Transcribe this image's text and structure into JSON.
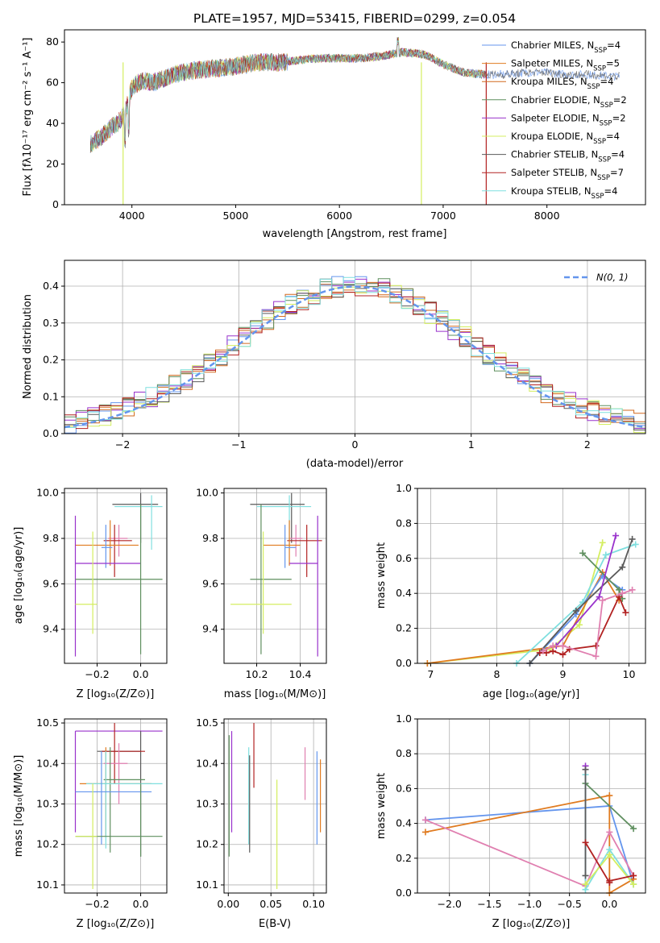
{
  "colors": {
    "blue": "#6495ed",
    "orange": "#e07b20",
    "darkorange": "#d2691e",
    "green": "#5f8f5f",
    "purple": "#9932cc",
    "yellow": "#d4ee60",
    "gray": "#5a5a5a",
    "red": "#b22222",
    "cyan": "#7fdfdf",
    "pink": "#e07fb0"
  },
  "chart_data": [
    {
      "id": "spectrum",
      "type": "line",
      "title": "PLATE=1957, MJD=53415, FIBERID=0299, z=0.054",
      "xlabel": "wavelength [Angstrom, rest frame]",
      "ylabel": "Flux [fλ10⁻¹⁷ erg cm⁻² s⁻¹ A⁻¹]",
      "xlim": [
        3350,
        8950
      ],
      "ylim": [
        0,
        86
      ],
      "xticks": [
        "4000",
        "5000",
        "6000",
        "7000",
        "8000"
      ],
      "yticks": [
        "0",
        "20",
        "40",
        "60",
        "80"
      ],
      "legend_loc": "upper-right",
      "legend": [
        "Chabrier MILES, N_SSP=4",
        "Salpeter MILES, N_SSP=5",
        "Kroupa MILES, N_SSP=4",
        "Chabrier ELODIE, N_SSP=2",
        "Salpeter ELODIE, N_SSP=2",
        "Kroupa ELODIE, N_SSP=4",
        "Chabrier STELIB, N_SSP=4",
        "Salpeter STELIB, N_SSP=7",
        "Kroupa STELIB, N_SSP=4"
      ],
      "continuum": {
        "x": [
          3600,
          3700,
          3800,
          3900,
          3950,
          4000,
          4100,
          4200,
          4400,
          4600,
          4800,
          5000,
          5200,
          5400,
          5600,
          5800,
          6000,
          6200,
          6400,
          6600,
          6800,
          6900,
          7000,
          7200,
          7400,
          7600,
          7800,
          8000,
          8200,
          8400,
          8700
        ],
        "y": [
          30,
          33,
          38,
          42,
          48,
          58,
          61,
          60,
          64,
          66,
          67,
          68,
          70,
          70,
          71,
          72,
          72,
          72,
          73,
          75,
          74,
          72,
          69,
          65,
          64,
          64,
          65,
          65,
          64,
          64,
          63
        ]
      }
    },
    {
      "id": "residuals",
      "type": "bar",
      "xlabel": "(data-model)/error",
      "ylabel": "Normed distribution",
      "xlim": [
        -2.5,
        2.5
      ],
      "ylim": [
        0,
        0.47
      ],
      "xticks": [
        "−2",
        "−1",
        "0",
        "1",
        "2"
      ],
      "yticks": [
        "0.0",
        "0.1",
        "0.2",
        "0.3",
        "0.4"
      ],
      "bin_width": 0.1,
      "normal_curve_label": "N(0, 1)",
      "legend_loc": "upper-right",
      "series_colors": [
        "blue",
        "darkorange",
        "darkorange",
        "green",
        "purple",
        "yellow",
        "gray",
        "red",
        "cyan"
      ]
    },
    {
      "id": "age_vs_Z",
      "type": "scatter",
      "xlabel": "Z [log₁₀(Z/Z⊙)]",
      "ylabel": "age  [log₁₀(age/yr)]",
      "xlim": [
        -0.35,
        0.12
      ],
      "ylim": [
        9.25,
        10.02
      ],
      "xticks": [
        "−0.2",
        "0.0"
      ],
      "yticks": [
        "9.4",
        "9.6",
        "9.8",
        "10.0"
      ],
      "points": [
        {
          "c": "gray",
          "x": [
            -0.13,
            0.08
          ],
          "y": [
            9.95,
            9.95
          ],
          "vx": 0.0,
          "vy": [
            9.78,
            10.0
          ]
        },
        {
          "c": "cyan",
          "x": [
            -0.12,
            0.1
          ],
          "y": [
            9.94,
            9.94
          ],
          "vx": 0.05,
          "vy": [
            9.75,
            9.99
          ]
        },
        {
          "c": "pink",
          "x": [
            -0.15,
            -0.06
          ],
          "y": [
            9.8,
            9.8
          ],
          "vx": -0.1,
          "vy": [
            9.72,
            9.86
          ]
        },
        {
          "c": "red",
          "x": [
            -0.17,
            -0.04
          ],
          "y": [
            9.79,
            9.79
          ],
          "vx": -0.12,
          "vy": [
            9.63,
            9.86
          ]
        },
        {
          "c": "orange",
          "x": [
            -0.3,
            -0.01
          ],
          "y": [
            9.77,
            9.77
          ],
          "vx": -0.14,
          "vy": [
            9.68,
            9.88
          ]
        },
        {
          "c": "blue",
          "x": [
            -0.18,
            -0.13
          ],
          "y": [
            9.76,
            9.76
          ],
          "vx": -0.16,
          "vy": [
            9.67,
            9.86
          ]
        },
        {
          "c": "purple",
          "x": [
            -0.3,
            0.0
          ],
          "y": [
            9.69,
            9.69
          ],
          "vx": -0.3,
          "vy": [
            9.28,
            9.9
          ]
        },
        {
          "c": "green",
          "x": [
            -0.3,
            0.1
          ],
          "y": [
            9.62,
            9.62
          ],
          "vx": 0.0,
          "vy": [
            9.29,
            9.95
          ]
        },
        {
          "c": "yellow",
          "x": [
            -0.3,
            -0.2
          ],
          "y": [
            9.51,
            9.51
          ],
          "vx": -0.22,
          "vy": [
            9.38,
            9.83
          ]
        }
      ]
    },
    {
      "id": "age_vs_mass",
      "type": "scatter",
      "xlabel": "mass [log₁₀(M/M⊙)]",
      "ylabel": "",
      "xlim": [
        10.05,
        10.52
      ],
      "ylim": [
        9.25,
        10.02
      ],
      "xticks": [
        "10.2",
        "10.4"
      ],
      "yticks": [
        "9.4",
        "9.6",
        "9.8",
        "10.0"
      ],
      "points": [
        {
          "c": "gray",
          "x": [
            10.17,
            10.42
          ],
          "y": [
            9.95,
            9.95
          ],
          "vx": 10.36,
          "vy": [
            9.78,
            10.0
          ]
        },
        {
          "c": "cyan",
          "x": [
            10.2,
            10.45
          ],
          "y": [
            9.94,
            9.94
          ],
          "vx": 10.35,
          "vy": [
            9.75,
            9.99
          ]
        },
        {
          "c": "pink",
          "x": [
            10.35,
            10.41
          ],
          "y": [
            9.8,
            9.8
          ],
          "vx": 10.38,
          "vy": [
            9.72,
            9.86
          ]
        },
        {
          "c": "red",
          "x": [
            10.34,
            10.5
          ],
          "y": [
            9.79,
            9.79
          ],
          "vx": 10.43,
          "vy": [
            9.63,
            9.86
          ]
        },
        {
          "c": "orange",
          "x": [
            10.23,
            10.4
          ],
          "y": [
            9.77,
            9.77
          ],
          "vx": 10.35,
          "vy": [
            9.68,
            9.88
          ]
        },
        {
          "c": "blue",
          "x": [
            10.33,
            10.38
          ],
          "y": [
            9.76,
            9.76
          ],
          "vx": 10.33,
          "vy": [
            9.67,
            9.86
          ]
        },
        {
          "c": "purple",
          "x": [
            10.35,
            10.48
          ],
          "y": [
            9.69,
            9.69
          ],
          "vx": 10.48,
          "vy": [
            9.28,
            9.9
          ]
        },
        {
          "c": "green",
          "x": [
            10.17,
            10.36
          ],
          "y": [
            9.62,
            9.62
          ],
          "vx": 10.22,
          "vy": [
            9.29,
            9.95
          ]
        },
        {
          "c": "yellow",
          "x": [
            10.08,
            10.36
          ],
          "y": [
            9.51,
            9.51
          ],
          "vx": 10.23,
          "vy": [
            9.38,
            9.83
          ]
        }
      ]
    },
    {
      "id": "weight_vs_age",
      "type": "line",
      "xlabel": "age  [log₁₀(age/yr)]",
      "ylabel": "mass weight",
      "xlim": [
        6.8,
        10.25
      ],
      "ylim": [
        0,
        1.0
      ],
      "xticks": [
        "7",
        "8",
        "9",
        "10"
      ],
      "yticks": [
        "0.0",
        "0.2",
        "0.4",
        "0.6",
        "0.8",
        "1.0"
      ],
      "series": [
        {
          "c": "yellow",
          "x": [
            6.95,
            8.8,
            9.25,
            9.6
          ],
          "y": [
            0.0,
            0.08,
            0.22,
            0.69
          ]
        },
        {
          "c": "orange",
          "x": [
            6.95,
            9.0,
            9.6,
            9.85
          ],
          "y": [
            0.0,
            0.1,
            0.52,
            0.36
          ]
        },
        {
          "c": "blue",
          "x": [
            8.5,
            9.2,
            9.6,
            9.9
          ],
          "y": [
            0.0,
            0.28,
            0.5,
            0.42
          ]
        },
        {
          "c": "cyan",
          "x": [
            8.3,
            9.3,
            9.65,
            10.1
          ],
          "y": [
            0.0,
            0.35,
            0.62,
            0.68
          ]
        },
        {
          "c": "gray",
          "x": [
            8.5,
            9.2,
            9.9,
            10.05
          ],
          "y": [
            0.0,
            0.3,
            0.55,
            0.71
          ]
        },
        {
          "c": "green",
          "x": [
            9.3,
            9.85,
            9.9
          ],
          "y": [
            0.63,
            0.42,
            0.37
          ]
        },
        {
          "c": "purple",
          "x": [
            8.9,
            9.55,
            9.8
          ],
          "y": [
            0.1,
            0.38,
            0.73
          ]
        },
        {
          "c": "red",
          "x": [
            8.65,
            8.75,
            8.85,
            9.0,
            9.1,
            9.5,
            9.85,
            9.95
          ],
          "y": [
            0.06,
            0.06,
            0.07,
            0.05,
            0.08,
            0.1,
            0.38,
            0.29
          ]
        },
        {
          "c": "pink",
          "x": [
            8.7,
            8.85,
            9.0,
            9.5,
            9.6,
            9.9,
            10.05
          ],
          "y": [
            0.07,
            0.1,
            0.1,
            0.04,
            0.36,
            0.4,
            0.42
          ]
        }
      ]
    },
    {
      "id": "mass_vs_Z",
      "type": "scatter",
      "xlabel": "Z [log₁₀(Z/Z⊙)]",
      "ylabel": "mass [log₁₀(M/M⊙)]",
      "xlim": [
        -0.35,
        0.12
      ],
      "ylim": [
        10.08,
        10.51
      ],
      "xticks": [
        "−0.2",
        "0.0"
      ],
      "yticks": [
        "10.1",
        "10.2",
        "10.3",
        "10.4",
        "10.5"
      ],
      "points": [
        {
          "c": "purple",
          "x": [
            -0.3,
            0.1
          ],
          "y": [
            10.48,
            10.48
          ],
          "vx": -0.3,
          "vy": [
            10.23,
            10.48
          ]
        },
        {
          "c": "gray",
          "x": [
            -0.2,
            0.0
          ],
          "y": [
            10.43,
            10.43
          ],
          "vx": 0.0,
          "vy": [
            10.17,
            10.48
          ]
        },
        {
          "c": "red",
          "x": [
            -0.18,
            0.02
          ],
          "y": [
            10.43,
            10.43
          ],
          "vx": -0.12,
          "vy": [
            10.35,
            10.5
          ]
        },
        {
          "c": "pink",
          "x": [
            -0.17,
            -0.06
          ],
          "y": [
            10.4,
            10.4
          ],
          "vx": -0.1,
          "vy": [
            10.3,
            10.45
          ]
        },
        {
          "c": "green",
          "x": [
            -0.17,
            0.02
          ],
          "y": [
            10.36,
            10.36
          ],
          "vx": -0.14,
          "vy": [
            10.18,
            10.44
          ]
        },
        {
          "c": "orange",
          "x": [
            -0.28,
            0.05
          ],
          "y": [
            10.35,
            10.35
          ],
          "vx": -0.16,
          "vy": [
            10.22,
            10.44
          ]
        },
        {
          "c": "cyan",
          "x": [
            -0.25,
            0.1
          ],
          "y": [
            10.35,
            10.35
          ],
          "vx": -0.16,
          "vy": [
            10.19,
            10.43
          ]
        },
        {
          "c": "blue",
          "x": [
            -0.3,
            0.05
          ],
          "y": [
            10.33,
            10.33
          ],
          "vx": -0.18,
          "vy": [
            10.2,
            10.43
          ]
        },
        {
          "c": "green",
          "x": [
            -0.3,
            0.1
          ],
          "y": [
            10.22,
            10.22
          ],
          "vx": 0.0,
          "vy": [
            10.17,
            10.35
          ]
        },
        {
          "c": "yellow",
          "x": [
            -0.3,
            -0.2
          ],
          "y": [
            10.22,
            10.22
          ],
          "vx": -0.22,
          "vy": [
            10.09,
            10.35
          ]
        }
      ]
    },
    {
      "id": "mass_vs_ebv",
      "type": "scatter",
      "xlabel": "E(B-V)",
      "ylabel": "",
      "xlim": [
        -0.005,
        0.115
      ],
      "ylim": [
        10.08,
        10.51
      ],
      "xticks": [
        "0.00",
        "0.05",
        "0.10"
      ],
      "yticks": [
        "10.1",
        "10.2",
        "10.3",
        "10.4",
        "10.5"
      ],
      "points": [
        {
          "c": "green",
          "x": [
            0.001,
            0.001
          ],
          "y": [
            10.47,
            10.47
          ],
          "vx": 0.001,
          "vy": [
            10.17,
            10.47
          ]
        },
        {
          "c": "purple",
          "x": [
            0.004,
            0.004
          ],
          "y": [
            10.48,
            10.48
          ],
          "vx": 0.004,
          "vy": [
            10.23,
            10.48
          ]
        },
        {
          "c": "cyan",
          "x": [
            0.024,
            0.024
          ],
          "y": [
            10.44,
            10.44
          ],
          "vx": 0.024,
          "vy": [
            10.2,
            10.44
          ]
        },
        {
          "c": "gray",
          "x": [
            0.025,
            0.025
          ],
          "y": [
            10.42,
            10.42
          ],
          "vx": 0.025,
          "vy": [
            10.18,
            10.42
          ]
        },
        {
          "c": "red",
          "x": [
            0.03,
            0.03
          ],
          "y": [
            10.5,
            10.5
          ],
          "vx": 0.03,
          "vy": [
            10.34,
            10.5
          ]
        },
        {
          "c": "yellow",
          "x": [
            0.057,
            0.057
          ],
          "y": [
            10.36,
            10.36
          ],
          "vx": 0.057,
          "vy": [
            10.09,
            10.36
          ]
        },
        {
          "c": "pink",
          "x": [
            0.09,
            0.09
          ],
          "y": [
            10.44,
            10.44
          ],
          "vx": 0.09,
          "vy": [
            10.31,
            10.44
          ]
        },
        {
          "c": "blue",
          "x": [
            0.104,
            0.104
          ],
          "y": [
            10.43,
            10.43
          ],
          "vx": 0.104,
          "vy": [
            10.2,
            10.43
          ]
        },
        {
          "c": "orange",
          "x": [
            0.108,
            0.108
          ],
          "y": [
            10.41,
            10.41
          ],
          "vx": 0.108,
          "vy": [
            10.23,
            10.41
          ]
        }
      ]
    },
    {
      "id": "weight_vs_Z",
      "type": "line",
      "xlabel": "Z [log₁₀(Z/Z⊙)]",
      "ylabel": "mass weight",
      "xlim": [
        -2.4,
        0.45
      ],
      "ylim": [
        0,
        1.0
      ],
      "xticks": [
        "−2.0",
        "−1.5",
        "−1.0",
        "−0.5",
        "0.0"
      ],
      "yticks": [
        "0.0",
        "0.2",
        "0.4",
        "0.6",
        "0.8",
        "1.0"
      ],
      "series": [
        {
          "c": "blue",
          "x": [
            -2.3,
            0.0,
            0.3
          ],
          "y": [
            0.42,
            0.5,
            0.05
          ]
        },
        {
          "c": "orange",
          "x": [
            -2.3,
            0.0,
            0.0,
            0.3
          ],
          "y": [
            0.35,
            0.56,
            0.0,
            0.08
          ]
        },
        {
          "c": "pink",
          "x": [
            -2.3,
            -0.3,
            0.0,
            0.3
          ],
          "y": [
            0.42,
            0.04,
            0.35,
            0.1
          ]
        },
        {
          "c": "purple",
          "x": [
            -0.3,
            -0.3
          ],
          "y": [
            0.73,
            0.05
          ]
        },
        {
          "c": "green",
          "x": [
            -0.3,
            0.3
          ],
          "y": [
            0.63,
            0.37
          ]
        },
        {
          "c": "cyan",
          "x": [
            -0.3,
            -0.3,
            0.0,
            0.3
          ],
          "y": [
            0.68,
            0.02,
            0.25,
            0.05
          ]
        },
        {
          "c": "gray",
          "x": [
            -0.3,
            -0.3
          ],
          "y": [
            0.71,
            0.1
          ]
        },
        {
          "c": "yellow",
          "x": [
            -0.3,
            0.0,
            0.3
          ],
          "y": [
            0.05,
            0.22,
            0.05
          ]
        },
        {
          "c": "red",
          "x": [
            -0.3,
            0.0,
            0.0,
            0.3
          ],
          "y": [
            0.29,
            0.06,
            0.07,
            0.1
          ]
        }
      ]
    }
  ]
}
